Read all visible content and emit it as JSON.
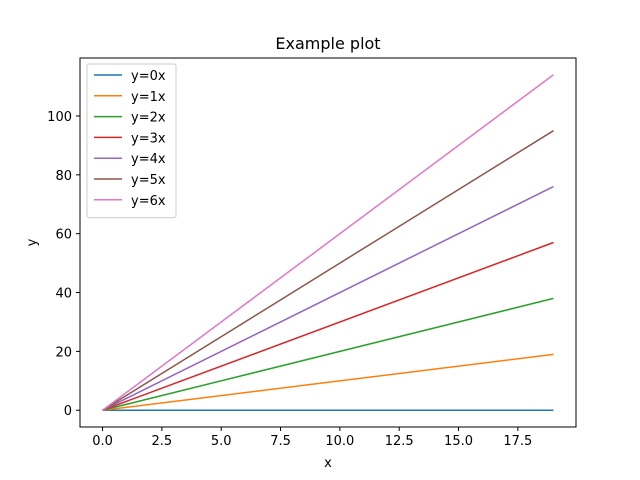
{
  "chart_data": {
    "type": "line",
    "title": "Example plot",
    "xlabel": "x",
    "ylabel": "y",
    "xlim": [
      -0.95,
      19.95
    ],
    "ylim": [
      -5.7,
      119.7
    ],
    "x_ticks": [
      0.0,
      2.5,
      5.0,
      7.5,
      10.0,
      12.5,
      15.0,
      17.5
    ],
    "x_tick_labels": [
      "0.0",
      "2.5",
      "5.0",
      "7.5",
      "10.0",
      "12.5",
      "15.0",
      "17.5"
    ],
    "y_ticks": [
      0,
      20,
      40,
      60,
      80,
      100
    ],
    "y_tick_labels": [
      "0",
      "20",
      "40",
      "60",
      "80",
      "100"
    ],
    "grid": false,
    "legend_position": "upper-left",
    "x": [
      0,
      19
    ],
    "series": [
      {
        "name": "y=0x",
        "values": [
          0,
          0
        ],
        "color": "#1f77b4"
      },
      {
        "name": "y=1x",
        "values": [
          0,
          19
        ],
        "color": "#ff7f0e"
      },
      {
        "name": "y=2x",
        "values": [
          0,
          38
        ],
        "color": "#2ca02c"
      },
      {
        "name": "y=3x",
        "values": [
          0,
          57
        ],
        "color": "#d62728"
      },
      {
        "name": "y=4x",
        "values": [
          0,
          76
        ],
        "color": "#9467bd"
      },
      {
        "name": "y=5x",
        "values": [
          0,
          95
        ],
        "color": "#8c564b"
      },
      {
        "name": "y=6x",
        "values": [
          0,
          114
        ],
        "color": "#e377c2"
      }
    ]
  }
}
